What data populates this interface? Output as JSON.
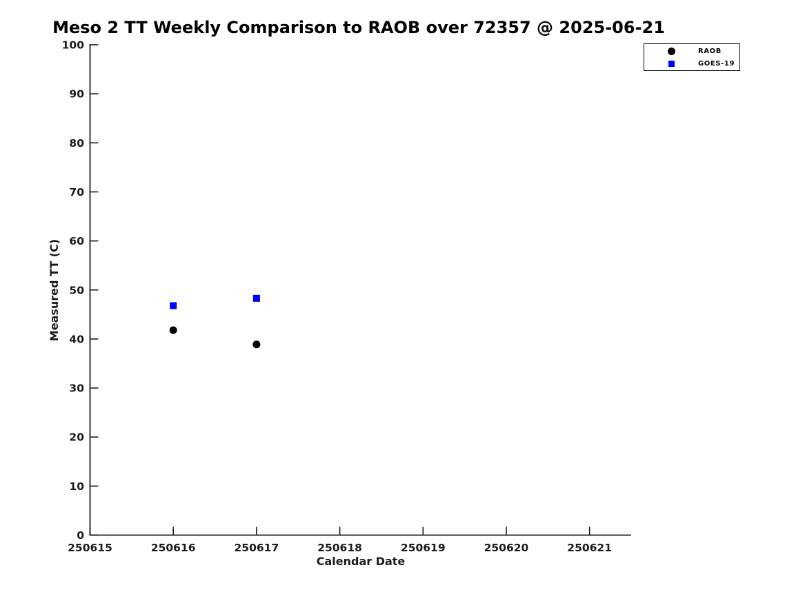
{
  "chart_data": {
    "type": "scatter",
    "title": "Meso 2 TT Weekly Comparison to RAOB over 72357 @ 2025-06-21",
    "xlabel": "Calendar Date",
    "ylabel": "Measured TT (C)",
    "xlim": [
      250615,
      250621.5
    ],
    "ylim": [
      0,
      100
    ],
    "xticks": [
      250615,
      250616,
      250617,
      250618,
      250619,
      250620,
      250621
    ],
    "yticks": [
      0,
      10,
      20,
      30,
      40,
      50,
      60,
      70,
      80,
      90,
      100
    ],
    "grid": false,
    "legend_position": "outside-top-right",
    "series": [
      {
        "name": "RAOB",
        "marker": "circle",
        "color": "#000000",
        "points": [
          {
            "x": 250616,
            "y": 41.8
          },
          {
            "x": 250617,
            "y": 38.9
          }
        ]
      },
      {
        "name": "GOES-19",
        "marker": "square",
        "color": "#0000ff",
        "points": [
          {
            "x": 250616,
            "y": 46.8
          },
          {
            "x": 250617,
            "y": 48.3
          }
        ]
      }
    ]
  }
}
